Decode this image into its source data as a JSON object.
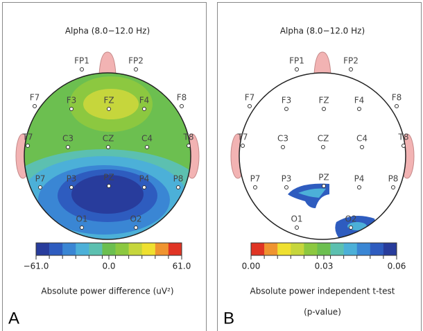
{
  "chart_data": [
    {
      "type": "topomap",
      "title": "Alpha (8.0−12.0 Hz)",
      "panel_label": "A",
      "axis_label": [
        "Absolute power difference (uV²)"
      ],
      "electrodes": [
        "FP1",
        "FP2",
        "F7",
        "F3",
        "FZ",
        "F4",
        "F8",
        "T7",
        "C3",
        "CZ",
        "C4",
        "T8",
        "P7",
        "P3",
        "PZ",
        "P4",
        "P8",
        "O1",
        "O2"
      ],
      "colorbar": {
        "colors": [
          "#283c9c",
          "#2e5cbf",
          "#3a86d4",
          "#4cb0d8",
          "#5cc0b0",
          "#6cbf50",
          "#8cc840",
          "#c6d63c",
          "#efe030",
          "#ef9430",
          "#e03424"
        ],
        "lim": [
          -61,
          61
        ],
        "ticks": [
          {
            "value": -61,
            "label": "−61.0"
          },
          {
            "value": 0,
            "label": "0.0"
          },
          {
            "value": 61,
            "label": "61.0"
          }
        ]
      }
    },
    {
      "type": "topomap",
      "title": "Alpha (8.0−12.0 Hz)",
      "panel_label": "B",
      "axis_label": [
        "Absolute power independent t-test",
        "(p-value)"
      ],
      "electrodes": [
        "FP1",
        "FP2",
        "F7",
        "F3",
        "FZ",
        "F4",
        "F8",
        "T7",
        "C3",
        "CZ",
        "C4",
        "T8",
        "P7",
        "P3",
        "PZ",
        "P4",
        "P8",
        "O1",
        "O2"
      ],
      "colorbar": {
        "colors": [
          "#e03424",
          "#ef9430",
          "#efe030",
          "#c6d63c",
          "#8cc840",
          "#6cbf50",
          "#5cc0b0",
          "#4cb0d8",
          "#3a86d4",
          "#2e5cbf",
          "#283c9c"
        ],
        "lim": [
          0,
          0.06
        ],
        "ticks": [
          {
            "value": 0,
            "label": "0.00"
          },
          {
            "value": 0.03,
            "label": "0.03"
          },
          {
            "value": 0.06,
            "label": "0.06"
          }
        ]
      }
    }
  ]
}
